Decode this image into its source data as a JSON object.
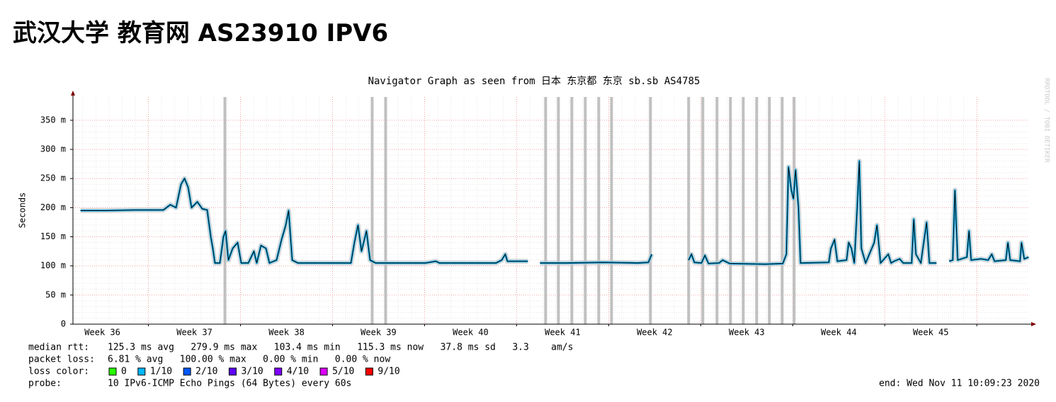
{
  "header": {
    "title": "武汉大学 教育网 AS23910 IPV6"
  },
  "chart_data": {
    "type": "line",
    "title": "Navigator Graph as seen from 日本 东京都 东京 sb.sb AS4785",
    "y_label": "Seconds",
    "watermark": "RRDTOOL / TOBI OETIKER",
    "xlim": [
      36.18,
      46.56
    ],
    "xticks": [
      {
        "value": 36.5,
        "label": "Week 36"
      },
      {
        "value": 37.5,
        "label": "Week 37"
      },
      {
        "value": 38.5,
        "label": "Week 38"
      },
      {
        "value": 39.5,
        "label": "Week 39"
      },
      {
        "value": 40.5,
        "label": "Week 40"
      },
      {
        "value": 41.5,
        "label": "Week 41"
      },
      {
        "value": 42.5,
        "label": "Week 42"
      },
      {
        "value": 43.5,
        "label": "Week 43"
      },
      {
        "value": 44.5,
        "label": "Week 44"
      },
      {
        "value": 45.5,
        "label": "Week 45"
      }
    ],
    "xgrid": [
      37,
      38,
      39,
      40,
      41,
      42,
      43,
      44,
      45,
      46
    ],
    "ylim": [
      0,
      0.39
    ],
    "yticks": [
      0,
      {
        "value": 0.05,
        "label": "50 m"
      },
      {
        "value": 0.1,
        "label": "100 m"
      },
      {
        "value": 0.15,
        "label": "150 m"
      },
      {
        "value": 0.2,
        "label": "200 m"
      },
      {
        "value": 0.25,
        "label": "250 m"
      },
      {
        "value": 0.3,
        "label": "300 m"
      },
      {
        "value": 0.35,
        "label": "350 m"
      }
    ],
    "grid": true,
    "x": [
      36.262,
      36.546,
      36.854,
      37.162,
      37.238,
      37.3,
      37.354,
      37.392,
      37.431,
      37.469,
      37.531,
      37.585,
      37.638,
      37.677,
      37.7,
      37.723,
      37.777,
      37.815,
      37.838,
      37.869,
      37.915,
      37.969,
      38.008,
      38.085,
      38.146,
      38.177,
      38.223,
      38.277,
      38.315,
      38.392,
      38.446,
      38.492,
      38.523,
      38.562,
      38.623,
      38.815,
      39.008,
      39.2,
      39.238,
      39.277,
      39.315,
      39.369,
      39.408,
      39.469,
      40.008,
      40.123,
      40.162,
      40.777,
      40.838,
      40.877,
      40.9,
      41.123,
      41.19,
      41.254,
      41.546,
      41.931,
      42.315,
      42.431,
      42.469,
      42.65,
      42.869,
      42.9,
      42.931,
      43.008,
      43.046,
      43.085,
      43.2,
      43.238,
      43.315,
      43.7,
      43.892,
      43.931,
      43.954,
      43.985,
      44.008,
      44.031,
      44.062,
      44.085,
      44.392,
      44.415,
      44.454,
      44.485,
      44.585,
      44.608,
      44.638,
      44.669,
      44.7,
      44.723,
      44.746,
      44.792,
      44.885,
      44.915,
      44.954,
      45.038,
      45.069,
      45.1,
      45.162,
      45.2,
      45.292,
      45.315,
      45.338,
      45.392,
      45.454,
      45.485,
      45.562,
      45.63,
      45.7,
      45.738,
      45.762,
      45.792,
      45.892,
      45.915,
      45.938,
      46.046,
      46.123,
      46.162,
      46.192,
      46.315,
      46.338,
      46.362,
      46.469,
      46.485,
      46.515,
      46.562
    ],
    "series": [
      {
        "color": "#000000",
        "loss_color": "#1fb4ef",
        "values": [
          0.195,
          0.195,
          0.196,
          0.196,
          0.205,
          0.2,
          0.24,
          0.25,
          0.235,
          0.2,
          0.21,
          0.198,
          0.196,
          0.15,
          0.13,
          0.105,
          0.105,
          0.15,
          0.16,
          0.11,
          0.13,
          0.14,
          0.105,
          0.105,
          0.125,
          0.105,
          0.135,
          0.13,
          0.105,
          0.11,
          0.145,
          0.17,
          0.195,
          0.11,
          0.105,
          0.105,
          0.105,
          0.105,
          0.14,
          0.17,
          0.125,
          0.16,
          0.11,
          0.105,
          0.105,
          0.108,
          0.105,
          0.105,
          0.11,
          0.12,
          0.108,
          0.108,
          null,
          0.105,
          0.105,
          0.106,
          0.105,
          0.106,
          0.12,
          null,
          0.11,
          0.12,
          0.106,
          0.105,
          0.118,
          0.104,
          0.105,
          0.11,
          0.104,
          0.103,
          0.104,
          0.12,
          0.27,
          0.23,
          0.215,
          0.265,
          0.2,
          0.105,
          0.106,
          0.13,
          0.145,
          0.108,
          0.11,
          0.14,
          0.13,
          0.105,
          0.2,
          0.28,
          0.13,
          0.105,
          0.14,
          0.17,
          0.105,
          0.12,
          0.105,
          0.108,
          0.112,
          0.105,
          0.105,
          0.18,
          0.12,
          0.105,
          0.175,
          0.105,
          0.105,
          null,
          0.108,
          0.11,
          0.23,
          0.11,
          0.115,
          0.16,
          0.11,
          0.112,
          0.11,
          0.12,
          0.108,
          0.11,
          0.14,
          0.11,
          0.108,
          0.14,
          0.112,
          0.115
        ]
      }
    ],
    "outages": [
      37.831,
      39.431,
      39.577,
      41.315,
      41.454,
      41.6,
      41.746,
      41.892,
      42.031,
      42.454,
      42.869,
      43.023,
      43.177,
      43.323,
      43.462,
      43.608,
      43.746,
      43.885,
      44.015
    ],
    "outage_color": "#c0c0c0"
  },
  "footer": {
    "stats": [
      {
        "label": "median rtt:",
        "text": "125.3 ms avg   279.9 ms max   103.4 ms min   115.3 ms now   37.8 ms sd   3.3    am/s"
      },
      {
        "label": "packet loss:",
        "text": "6.81 % avg   100.00 % max   0.00 % min   0.00 % now"
      }
    ],
    "legend": {
      "label": "loss color:",
      "items": [
        {
          "label": "0",
          "color": "#26ff00"
        },
        {
          "label": "1/10",
          "color": "#00b8ff"
        },
        {
          "label": "2/10",
          "color": "#0059ff"
        },
        {
          "label": "3/10",
          "color": "#5e00ff"
        },
        {
          "label": "4/10",
          "color": "#7e00ff"
        },
        {
          "label": "5/10",
          "color": "#dd00ff"
        },
        {
          "label": "9/10",
          "color": "#ff0000"
        }
      ]
    },
    "probe": {
      "label": "probe:",
      "text": "10 IPv6-ICMP Echo Pings (64 Bytes) every 60s"
    },
    "end": "end: Wed Nov 11 10:09:23 2020"
  }
}
